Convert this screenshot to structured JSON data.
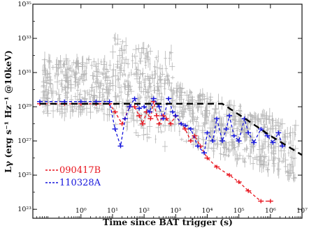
{
  "chart_data": {
    "type": "scatter",
    "xlabel": "Time since BAT trigger (s)",
    "ylabel": "Lγ (erg s⁻¹ Hz⁻¹ @10keV)",
    "x_scale": "log",
    "y_scale": "log",
    "xlim": [
      0.03,
      10000000
    ],
    "ylim": [
      3e+22,
      1e+35
    ],
    "x_ticks": [
      {
        "value": 1,
        "label": "10⁰"
      },
      {
        "value": 10,
        "label": "10¹"
      },
      {
        "value": 100,
        "label": "10²"
      },
      {
        "value": 1000,
        "label": "10³"
      },
      {
        "value": 10000,
        "label": "10⁴"
      },
      {
        "value": 100000,
        "label": "10⁵"
      },
      {
        "value": 1000000,
        "label": "10⁶"
      },
      {
        "value": 10000000,
        "label": "10⁷"
      }
    ],
    "y_ticks": [
      {
        "value": 1e+23,
        "label": "10²³"
      },
      {
        "value": 1e+25,
        "label": "10²⁵"
      },
      {
        "value": 1e+27,
        "label": "10²⁷"
      },
      {
        "value": 1e+29,
        "label": "10²⁹"
      },
      {
        "value": 1e+31,
        "label": "10³¹"
      },
      {
        "value": 1e+33,
        "label": "10³³"
      },
      {
        "value": 1e+35,
        "label": "10³⁵"
      }
    ],
    "grid": false,
    "legend_position": "lower-left",
    "colors": {
      "background_sample": "#b4b4b4",
      "red": "#e8141e",
      "blue": "#1414dc",
      "threshold": "#000000"
    },
    "series": [
      {
        "name": "090417B",
        "color": "#e8141e",
        "style": "dashed-with-points",
        "x": [
          0.05,
          0.3,
          1,
          3,
          8,
          12,
          20,
          35,
          50,
          70,
          90,
          120,
          160,
          200,
          250,
          300,
          400,
          500,
          700,
          1000,
          1500,
          2000,
          3000,
          4000,
          6000,
          10000,
          20000,
          50000,
          100000,
          200000,
          500000,
          1000000
        ],
        "y": [
          1.5e+29,
          1.5e+29,
          1.5e+29,
          1.5e+29,
          1.5e+29,
          5e+28,
          1e+28,
          1e+29,
          1e+29,
          3e+28,
          1e+28,
          5e+28,
          2e+28,
          2e+29,
          3e+28,
          1e+28,
          3e+28,
          2e+28,
          1e+28,
          3e+28,
          1e+28,
          5e+27,
          1e+27,
          2e+27,
          5e+26,
          1e+26,
          3e+25,
          1e+25,
          4e+24,
          1.2e+24,
          3e+23,
          3e+23
        ]
      },
      {
        "name": "110328A",
        "color": "#1414dc",
        "style": "dashed-with-points",
        "x": [
          0.05,
          0.3,
          1,
          3,
          8,
          12,
          18,
          25,
          35,
          50,
          70,
          100,
          150,
          200,
          300,
          400,
          600,
          800,
          1000,
          1500,
          2000,
          3000,
          5000,
          8000,
          10000,
          15000,
          20000,
          30000,
          40000,
          50000,
          70000,
          100000,
          150000,
          200000,
          300000,
          500000,
          800000,
          1200000,
          1800000,
          2400000
        ],
        "y": [
          2e+29,
          2e+29,
          2e+29,
          2e+29,
          2e+29,
          5e+27,
          5e+26,
          2e+28,
          1e+29,
          3e+29,
          8e+28,
          1e+29,
          5e+28,
          3e+29,
          1e+29,
          2e+28,
          3e+29,
          5e+28,
          3e+28,
          1e+28,
          8e+27,
          5e+27,
          5e+26,
          2e+26,
          3e+27,
          1e+27,
          2e+28,
          1e+27,
          5e+27,
          3e+28,
          2e+27,
          1e+27,
          2e+28,
          3e+27,
          8e+26,
          5e+27,
          2e+27,
          8e+26,
          3e+27,
          5e+26
        ]
      },
      {
        "name": "",
        "color": "#000000",
        "style": "dashed-thick",
        "x": [
          0.05,
          30000,
          200000,
          1000000,
          10000000
        ],
        "y": [
          1.5e+29,
          1.5e+29,
          1.5e+28,
          2e+27,
          1.5e+26
        ]
      }
    ]
  }
}
